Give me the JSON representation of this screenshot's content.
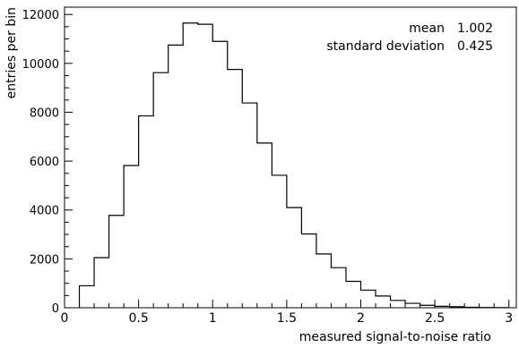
{
  "chart_data": {
    "type": "bar",
    "style": "step-histogram",
    "xlabel": "measured signal-to-noise ratio",
    "ylabel": "entries per bin",
    "xlim": [
      0,
      3.05
    ],
    "ylim": [
      0,
      12300
    ],
    "bin_width": 0.1,
    "bin_edges_start": 0.1,
    "values": [
      900,
      2050,
      3780,
      5820,
      7850,
      9620,
      10750,
      11650,
      11600,
      10900,
      9750,
      8380,
      6740,
      5420,
      4100,
      3020,
      2200,
      1640,
      1080,
      720,
      480,
      300,
      180,
      100,
      60,
      40,
      20,
      10,
      5
    ],
    "x_ticks": [
      0,
      0.5,
      1,
      1.5,
      2,
      2.5,
      3
    ],
    "x_tick_labels": [
      "0",
      "0.5",
      "1",
      "1.5",
      "2",
      "2.5",
      "3"
    ],
    "y_ticks": [
      0,
      2000,
      4000,
      6000,
      8000,
      10000,
      12000
    ],
    "y_tick_labels": [
      "0",
      "2000",
      "4000",
      "6000",
      "8000",
      "10000",
      "12000"
    ],
    "stats": [
      {
        "label": "mean",
        "value": "1.002"
      },
      {
        "label": "standard deviation",
        "value": "0.425"
      }
    ],
    "grid": false,
    "legend": "none",
    "colors": {
      "line": "#000000",
      "background": "#ffffff"
    }
  }
}
